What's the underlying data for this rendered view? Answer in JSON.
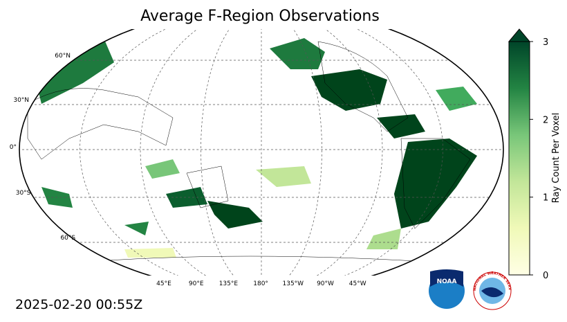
{
  "map": {
    "title": "Average F-Region Observations",
    "lat_labels": [
      "60°N",
      "30°N",
      "0°",
      "30°S",
      "60°S"
    ],
    "lon_labels": [
      "45°E",
      "90°E",
      "135°E",
      "180°",
      "135°W",
      "90°W",
      "45°W"
    ],
    "timestamp": "2025-02-20 00:55Z",
    "colorbar": {
      "label": "Ray Count Per Voxel",
      "lim": [
        0,
        3
      ],
      "ticks": [
        0,
        1,
        2,
        3
      ]
    },
    "logos": {
      "noaa": "NOAA",
      "nws": "NATIONAL WEATHER SERVICE"
    }
  }
}
